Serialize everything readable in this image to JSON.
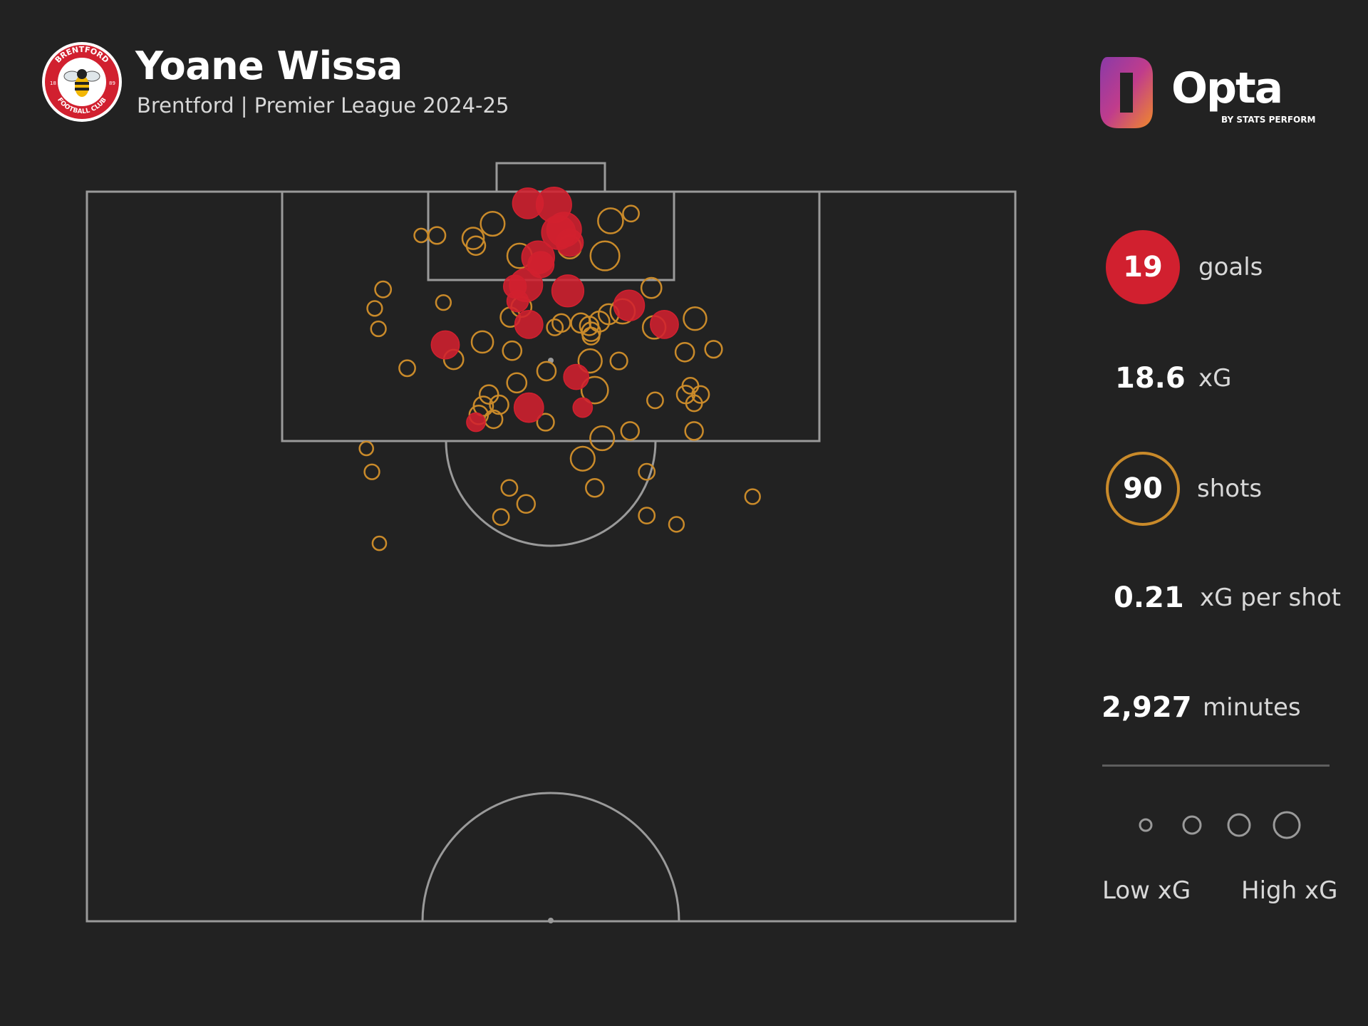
{
  "header": {
    "player_name": "Yoane Wissa",
    "subtitle": "Brentford | Premier League 2024-25"
  },
  "crest": {
    "text_top": "BRENTFORD",
    "text_bottom": "FOOTBALL CLUB",
    "year_left": "18",
    "year_right": "89",
    "colors": {
      "red": "#d1202f",
      "white": "#ffffff"
    }
  },
  "brand": {
    "name": "Opta",
    "tagline": "BY STATS PERFORM",
    "colors": [
      "#c03c8c",
      "#e06a3a",
      "#8a3aa8"
    ]
  },
  "stats": {
    "goals": {
      "value": "19",
      "label": "goals"
    },
    "xg": {
      "value": "18.6",
      "label": "xG"
    },
    "shots": {
      "value": "90",
      "label": "shots"
    },
    "xg_per_shot": {
      "value": "0.21",
      "label": "xG per shot"
    },
    "minutes": {
      "value": "2,927",
      "label": "minutes"
    }
  },
  "legend": {
    "low_label": "Low xG",
    "high_label": "High xG"
  },
  "colors": {
    "background": "#222222",
    "goal": "#d1202f",
    "shot": "#c98a2a",
    "pitch_lines": "#9a9a9a",
    "legend_circle": "#9a9a9a"
  },
  "chart_data": {
    "type": "scatter",
    "title": "Yoane Wissa",
    "subtitle": "Brentford | Premier League 2024-25",
    "x_axis": "pitch width (0 = left touchline, 100 = right touchline)",
    "y_axis": "distance from goal line (0 = goal line, 50 = halfway line)",
    "xlim": [
      0,
      100
    ],
    "ylim": [
      0,
      50
    ],
    "size_encodes": "xG",
    "series": [
      {
        "name": "goals",
        "points": [
          {
            "x": 47.5,
            "y": 0.8,
            "xg": 0.3
          },
          {
            "x": 50.3,
            "y": 0.9,
            "xg": 0.42
          },
          {
            "x": 51.4,
            "y": 2.6,
            "xg": 0.4
          },
          {
            "x": 50.8,
            "y": 2.8,
            "xg": 0.38
          },
          {
            "x": 52.0,
            "y": 3.5,
            "xg": 0.22
          },
          {
            "x": 48.6,
            "y": 4.5,
            "xg": 0.35
          },
          {
            "x": 48.9,
            "y": 5.0,
            "xg": 0.2
          },
          {
            "x": 47.3,
            "y": 6.4,
            "xg": 0.36
          },
          {
            "x": 46.1,
            "y": 6.5,
            "xg": 0.14
          },
          {
            "x": 51.8,
            "y": 6.8,
            "xg": 0.33
          },
          {
            "x": 46.4,
            "y": 7.5,
            "xg": 0.12
          },
          {
            "x": 58.4,
            "y": 7.8,
            "xg": 0.3
          },
          {
            "x": 47.6,
            "y": 9.1,
            "xg": 0.24
          },
          {
            "x": 62.2,
            "y": 9.1,
            "xg": 0.24
          },
          {
            "x": 38.6,
            "y": 10.5,
            "xg": 0.24
          },
          {
            "x": 52.7,
            "y": 12.7,
            "xg": 0.18
          },
          {
            "x": 47.6,
            "y": 14.8,
            "xg": 0.27
          },
          {
            "x": 53.4,
            "y": 14.8,
            "xg": 0.09
          },
          {
            "x": 41.9,
            "y": 15.8,
            "xg": 0.08
          }
        ]
      },
      {
        "name": "shots",
        "points": [
          {
            "x": 56.4,
            "y": 2.0,
            "xg": 0.18
          },
          {
            "x": 58.6,
            "y": 1.5,
            "xg": 0.05
          },
          {
            "x": 43.7,
            "y": 2.2,
            "xg": 0.16
          },
          {
            "x": 41.6,
            "y": 3.2,
            "xg": 0.12
          },
          {
            "x": 41.9,
            "y": 3.7,
            "xg": 0.08
          },
          {
            "x": 37.7,
            "y": 3.0,
            "xg": 0.06
          },
          {
            "x": 36.0,
            "y": 3.0,
            "xg": 0.03
          },
          {
            "x": 52.0,
            "y": 3.8,
            "xg": 0.14
          },
          {
            "x": 55.8,
            "y": 4.4,
            "xg": 0.26
          },
          {
            "x": 46.6,
            "y": 4.4,
            "xg": 0.17
          },
          {
            "x": 60.8,
            "y": 6.6,
            "xg": 0.1
          },
          {
            "x": 31.9,
            "y": 6.7,
            "xg": 0.05
          },
          {
            "x": 31.0,
            "y": 8.0,
            "xg": 0.04
          },
          {
            "x": 38.4,
            "y": 7.6,
            "xg": 0.04
          },
          {
            "x": 46.8,
            "y": 7.9,
            "xg": 0.1
          },
          {
            "x": 45.6,
            "y": 8.6,
            "xg": 0.09
          },
          {
            "x": 57.7,
            "y": 8.2,
            "xg": 0.17
          },
          {
            "x": 56.2,
            "y": 8.4,
            "xg": 0.1
          },
          {
            "x": 55.2,
            "y": 8.9,
            "xg": 0.1
          },
          {
            "x": 54.1,
            "y": 9.2,
            "xg": 0.08
          },
          {
            "x": 53.2,
            "y": 9.0,
            "xg": 0.09
          },
          {
            "x": 51.1,
            "y": 9.0,
            "xg": 0.07
          },
          {
            "x": 50.4,
            "y": 9.3,
            "xg": 0.05
          },
          {
            "x": 54.3,
            "y": 9.6,
            "xg": 0.08
          },
          {
            "x": 61.1,
            "y": 9.3,
            "xg": 0.14
          },
          {
            "x": 65.5,
            "y": 8.7,
            "xg": 0.14
          },
          {
            "x": 54.3,
            "y": 9.9,
            "xg": 0.06
          },
          {
            "x": 31.4,
            "y": 9.4,
            "xg": 0.04
          },
          {
            "x": 42.6,
            "y": 10.3,
            "xg": 0.12
          },
          {
            "x": 45.8,
            "y": 10.9,
            "xg": 0.08
          },
          {
            "x": 64.4,
            "y": 11.0,
            "xg": 0.08
          },
          {
            "x": 67.5,
            "y": 10.8,
            "xg": 0.06
          },
          {
            "x": 39.5,
            "y": 11.5,
            "xg": 0.09
          },
          {
            "x": 34.5,
            "y": 12.1,
            "xg": 0.05
          },
          {
            "x": 54.2,
            "y": 11.6,
            "xg": 0.15
          },
          {
            "x": 57.3,
            "y": 11.6,
            "xg": 0.06
          },
          {
            "x": 49.5,
            "y": 12.3,
            "xg": 0.08
          },
          {
            "x": 46.3,
            "y": 13.1,
            "xg": 0.09
          },
          {
            "x": 54.7,
            "y": 13.6,
            "xg": 0.21
          },
          {
            "x": 43.3,
            "y": 13.9,
            "xg": 0.08
          },
          {
            "x": 65.0,
            "y": 13.3,
            "xg": 0.05
          },
          {
            "x": 64.5,
            "y": 13.9,
            "xg": 0.07
          },
          {
            "x": 66.1,
            "y": 13.9,
            "xg": 0.06
          },
          {
            "x": 65.4,
            "y": 14.5,
            "xg": 0.05
          },
          {
            "x": 61.2,
            "y": 14.3,
            "xg": 0.05
          },
          {
            "x": 42.7,
            "y": 14.7,
            "xg": 0.09
          },
          {
            "x": 44.4,
            "y": 14.6,
            "xg": 0.08
          },
          {
            "x": 42.2,
            "y": 15.3,
            "xg": 0.08
          },
          {
            "x": 43.8,
            "y": 15.6,
            "xg": 0.07
          },
          {
            "x": 49.4,
            "y": 15.8,
            "xg": 0.06
          },
          {
            "x": 55.5,
            "y": 16.9,
            "xg": 0.16
          },
          {
            "x": 58.5,
            "y": 16.4,
            "xg": 0.07
          },
          {
            "x": 65.4,
            "y": 16.4,
            "xg": 0.07
          },
          {
            "x": 30.1,
            "y": 17.6,
            "xg": 0.03
          },
          {
            "x": 53.4,
            "y": 18.3,
            "xg": 0.16
          },
          {
            "x": 60.3,
            "y": 19.2,
            "xg": 0.05
          },
          {
            "x": 30.7,
            "y": 19.2,
            "xg": 0.04
          },
          {
            "x": 45.5,
            "y": 20.3,
            "xg": 0.05
          },
          {
            "x": 54.7,
            "y": 20.3,
            "xg": 0.07
          },
          {
            "x": 47.3,
            "y": 21.4,
            "xg": 0.07
          },
          {
            "x": 71.7,
            "y": 20.9,
            "xg": 0.04
          },
          {
            "x": 44.6,
            "y": 22.3,
            "xg": 0.05
          },
          {
            "x": 60.3,
            "y": 22.2,
            "xg": 0.05
          },
          {
            "x": 63.5,
            "y": 22.8,
            "xg": 0.04
          },
          {
            "x": 31.5,
            "y": 24.1,
            "xg": 0.03
          }
        ]
      }
    ],
    "legend": {
      "items": [
        "Low xG",
        "High xG"
      ],
      "placement": "bottom-right"
    }
  }
}
